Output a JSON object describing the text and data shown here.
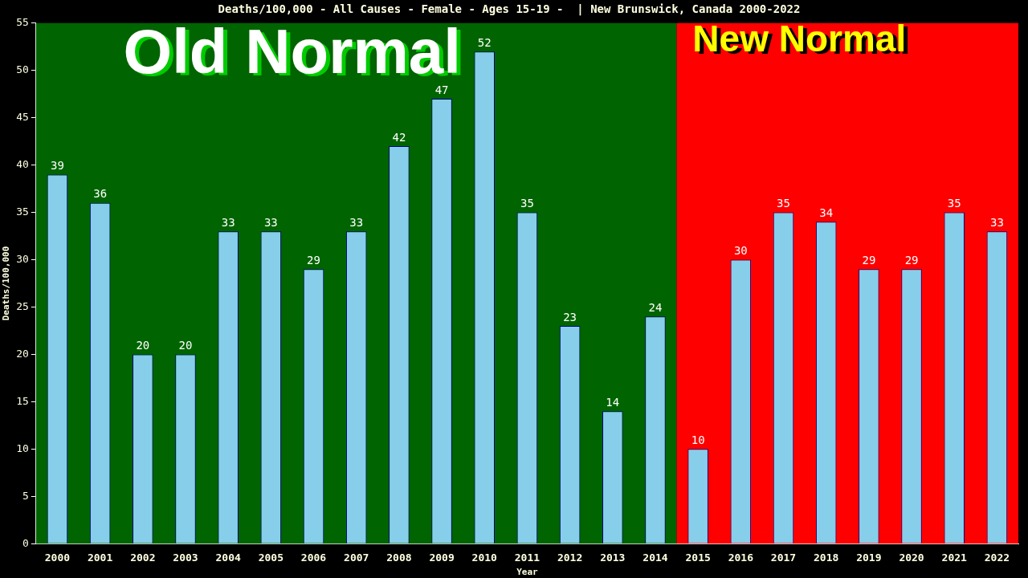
{
  "chart_data": {
    "type": "bar",
    "title": "Deaths/100,000 - All Causes - Female - Ages 15-19 -  | New Brunswick, Canada 2000-2022",
    "xlabel": "Year",
    "ylabel": "Deaths/100,000",
    "categories": [
      "2000",
      "2001",
      "2002",
      "2003",
      "2004",
      "2005",
      "2006",
      "2007",
      "2008",
      "2009",
      "2010",
      "2011",
      "2012",
      "2013",
      "2014",
      "2015",
      "2016",
      "2017",
      "2018",
      "2019",
      "2020",
      "2021",
      "2022"
    ],
    "values": [
      39,
      36,
      20,
      20,
      33,
      33,
      29,
      33,
      42,
      47,
      52,
      35,
      23,
      14,
      24,
      10,
      30,
      35,
      34,
      29,
      29,
      35,
      33
    ],
    "color": "#87ceeb",
    "ylim": [
      0,
      55
    ],
    "yticks": [
      0,
      5,
      10,
      15,
      20,
      25,
      30,
      35,
      40,
      45,
      50,
      55
    ],
    "grid": false,
    "legend": false,
    "data_labels": true,
    "bands": [
      {
        "axis": "x",
        "from": "2000",
        "to": "2014",
        "label": "Old Normal",
        "color": "#006400"
      },
      {
        "axis": "x",
        "from": "2015",
        "to": "2022",
        "label": "New Normal",
        "color": "#ff0000"
      }
    ]
  }
}
